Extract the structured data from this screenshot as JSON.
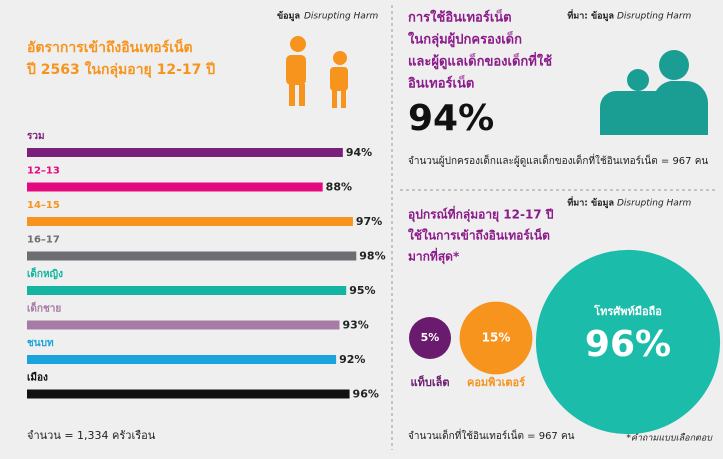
{
  "left": {
    "source_label": "ข้อมูล",
    "source": "Disrupting Harm",
    "title": [
      "อัตราการเข้าถึงอินเทอร์เน็ต",
      "ปี 2563 ในกลุ่มอายุ 12-17 ปี"
    ],
    "bars": {
      "categories": [
        "รวม",
        "12–13",
        "14–15",
        "16–17",
        "เด็กหญิง",
        "เด็กชาย",
        "ชนบท",
        "เมือง"
      ],
      "values": [
        94,
        88,
        97,
        98,
        95,
        93,
        92,
        96
      ],
      "value_labels": [
        "94%",
        "88%",
        "97%",
        "98%",
        "95%",
        "93%",
        "92%",
        "96%"
      ],
      "colors": [
        "#7a1f7b",
        "#e5097f",
        "#f7941d",
        "#6d6e71",
        "#13b5a2",
        "#a67ca6",
        "#1aa3dc",
        "#111111"
      ],
      "xlim": [
        0,
        100
      ]
    },
    "footnote": "จำนวน = 1,334 ครัวเรือน"
  },
  "parents": {
    "source_label": "ที่มา: ข้อมูล",
    "source": "Disrupting Harm",
    "title": [
      "การใช้อินเทอร์เน็ต",
      "ในกลุ่มผู้ปกครองเด็ก",
      "และผู้ดูแลเด็กของเด็กที่ใช้",
      "อินเทอร์เน็ต"
    ],
    "value": "94%",
    "footnote": "จำนวนผู้ปกครองเด็กและผู้ดูแลเด็กของเด็กที่ใช้อินเทอร์เน็ต = 967 คน"
  },
  "devices": {
    "source_label": "ที่มา: ข้อมูล",
    "source": "Disrupting Harm",
    "title": [
      "อุปกรณ์ที่กลุ่มอายุ 12-17 ปี",
      "ใช้ในการเข้าถึงอินเทอร์เน็ต",
      "มากที่สุด*"
    ],
    "items": [
      {
        "name": "แท็บเล็ต",
        "value": 5,
        "value_label": "5%",
        "color": "#6b1b6d"
      },
      {
        "name": "คอมพิวเตอร์",
        "value": 15,
        "value_label": "15%",
        "color": "#f7941d"
      },
      {
        "name": "โทรศัพท์มือถือ",
        "value": 96,
        "value_label": "96%",
        "color": "#1cbcaa"
      }
    ],
    "footnote": "จำนวนเด็กที่ใช้อินเทอร์เน็ต = 967 คน",
    "note": "*คำถามแบบเลือกตอบ"
  }
}
